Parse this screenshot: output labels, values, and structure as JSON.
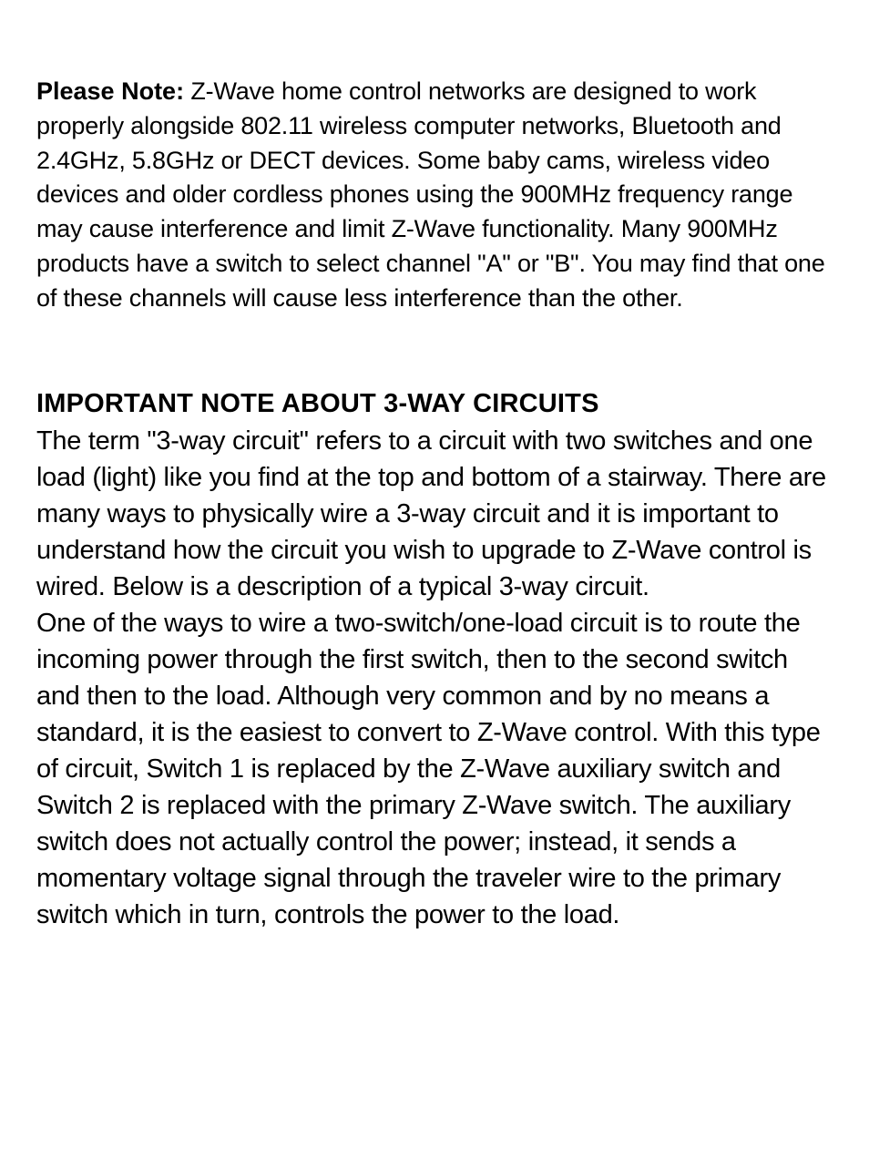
{
  "noteSection": {
    "label": "Please Note:",
    "text": "  Z-Wave home control networks are designed to work properly alongside 802.11 wireless computer networks, Bluetooth and 2.4GHz, 5.8GHz or DECT  devices.  Some baby cams, wireless video devices and older cordless phones using the 900MHz frequency range may cause interference and limit Z-Wave functionality.  Many 900MHz products have a switch to select channel \"A\" or \"B\".  You may find that one of these channels will cause less interference than the other."
  },
  "mainSection": {
    "heading": "IMPORTANT NOTE ABOUT 3-WAY CIRCUITS",
    "paragraph1": "The term \"3-way circuit\" refers to a circuit with two switches and one load (light) like you find at the top and bottom of a stairway.  There are many ways to physically wire a 3-way circuit and it is important to understand how the circuit you wish to upgrade to Z-Wave control is wired.  Below is a description of a typical 3-way circuit.",
    "paragraph2": "One of the ways to wire a two-switch/one-load circuit is to route the incoming power through the first switch, then to the second switch and then to the load.  Although very common and by no means a standard, it is the easiest to convert to Z-Wave control.  With this type of circuit, Switch 1 is replaced by the Z-Wave auxiliary switch and Switch 2 is replaced with the primary Z-Wave switch.  The auxiliary switch does not actually control the power; instead, it sends a momentary voltage signal through the traveler wire to the primary switch which in turn, controls the power to the load."
  },
  "colors": {
    "background": "#ffffff",
    "text": "#000000"
  },
  "typography": {
    "noteFontSize": 27,
    "headingFontSize": 29,
    "bodyFontSize": 29,
    "lineHeight": 1.38
  }
}
